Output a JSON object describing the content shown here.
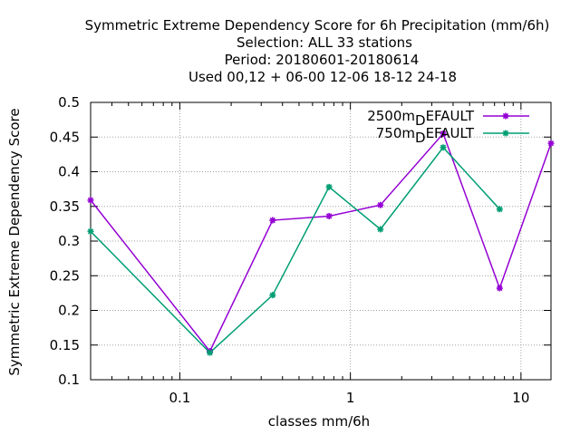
{
  "chart_data": {
    "type": "line",
    "title_lines": [
      "Symmetric Extreme Dependency Score  for 6h Precipitation (mm/6h)",
      "Selection: ALL     33 stations",
      "Period: 20180601-20180614",
      "Used  00,12  + 06-00 12-06 18-12 24-18"
    ],
    "xlabel": "classes mm/6h",
    "ylabel": "Symmetric Extreme Dependency Score",
    "x_scale": "log",
    "xlim": [
      0.03,
      15
    ],
    "ylim": [
      0.1,
      0.5
    ],
    "x_ticks": [
      {
        "value": 0.1,
        "label": "0.1"
      },
      {
        "value": 1,
        "label": "1"
      },
      {
        "value": 10,
        "label": "10"
      }
    ],
    "y_ticks": [
      {
        "value": 0.1,
        "label": "0.1"
      },
      {
        "value": 0.15,
        "label": "0.15"
      },
      {
        "value": 0.2,
        "label": "0.2"
      },
      {
        "value": 0.25,
        "label": "0.25"
      },
      {
        "value": 0.3,
        "label": "0.3"
      },
      {
        "value": 0.35,
        "label": "0.35"
      },
      {
        "value": 0.4,
        "label": "0.4"
      },
      {
        "value": 0.45,
        "label": "0.45"
      },
      {
        "value": 0.5,
        "label": "0.5"
      }
    ],
    "grid": true,
    "legend_position": "top-right",
    "series": [
      {
        "name": "2500m",
        "name_sub": "D",
        "name_rest": "EFAULT",
        "color": "#9400d3",
        "x": [
          0.03,
          0.15,
          0.35,
          0.75,
          1.5,
          3.5,
          7.5,
          15
        ],
        "y": [
          0.359,
          0.141,
          0.33,
          0.336,
          0.352,
          0.455,
          0.232,
          0.441
        ]
      },
      {
        "name": "750m",
        "name_sub": "D",
        "name_rest": "EFAULT",
        "color": "#009e73",
        "x": [
          0.03,
          0.15,
          0.35,
          0.75,
          1.5,
          3.5,
          7.5
        ],
        "y": [
          0.314,
          0.139,
          0.222,
          0.378,
          0.317,
          0.435,
          0.346
        ]
      }
    ]
  }
}
